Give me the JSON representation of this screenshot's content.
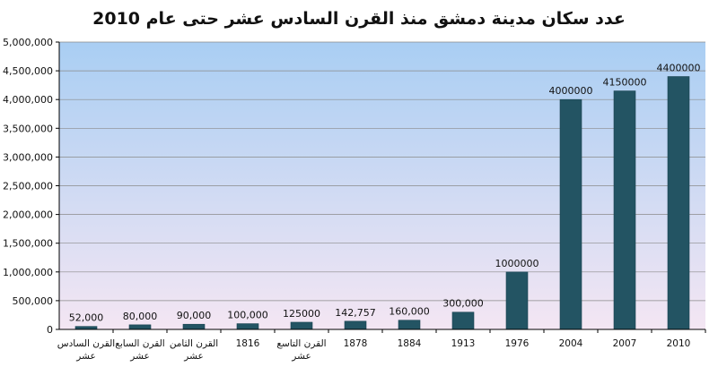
{
  "chart_data": {
    "type": "bar",
    "title": "عدد سكان مدينة دمشق منذ القرن السادس عشر حتى عام 2010",
    "xlabel": "",
    "ylabel": "",
    "ylim": [
      0,
      5000000
    ],
    "yticks": [
      "0",
      "500,000",
      "1,000,000",
      "1,500,000",
      "2,000,000",
      "2,500,000",
      "3,000,000",
      "3,500,000",
      "4,000,000",
      "4,500,000",
      "5,000,000"
    ],
    "categories": [
      [
        "القرن السادس",
        "عشر"
      ],
      [
        "القرن السابع",
        "عشر"
      ],
      [
        "القرن الثامن",
        "عشر"
      ],
      [
        "1816"
      ],
      [
        "القرن التاسع",
        "عشر"
      ],
      [
        "1878"
      ],
      [
        "1884"
      ],
      [
        "1913"
      ],
      [
        "1976"
      ],
      [
        "2004"
      ],
      [
        "2007"
      ],
      [
        "2010"
      ]
    ],
    "values": [
      52000,
      80000,
      90000,
      100000,
      125000,
      142757,
      160000,
      300000,
      1000000,
      4000000,
      4150000,
      4400000
    ],
    "data_labels": [
      "52,000",
      "80,000",
      "90,000",
      "100,000",
      "125000",
      "142,757",
      "160,000",
      "300,000",
      "1000000",
      "4000000",
      "4150000",
      "4400000"
    ],
    "grid": true,
    "legend": "none",
    "colors": {
      "bar": "#235463",
      "bar_edge": "#1b4451",
      "plot_top": "#a9cef3",
      "plot_bottom": "#f4e6f3",
      "axis": "#000000"
    }
  }
}
